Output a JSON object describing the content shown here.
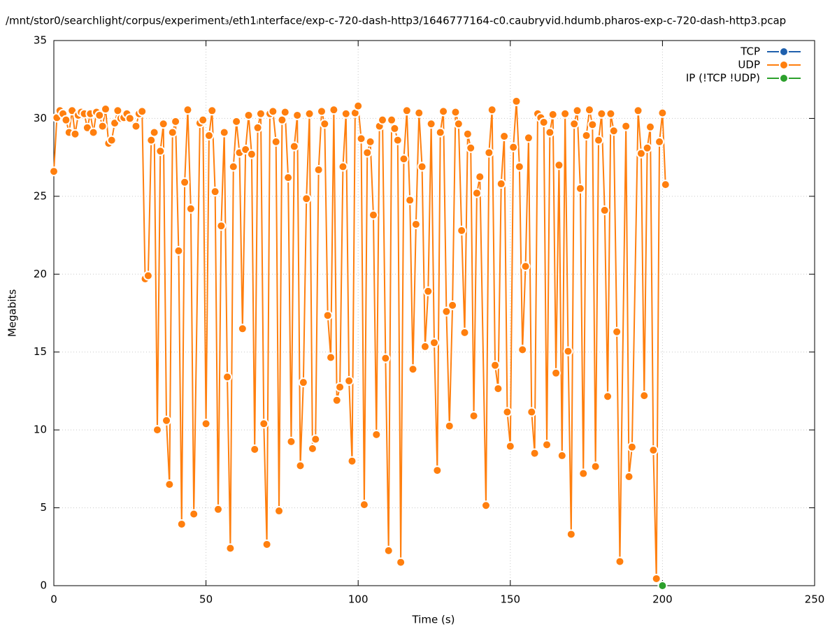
{
  "chart_data": {
    "type": "line",
    "title": "/mnt/stor0/searchlight/corpus/experiment₃/eth1ᵢnterface/exp-c-720-dash-http3/1646777164-c0.caubryvid.hdumb.pharos-exp-c-720-dash-http3.pcap",
    "x_label": "Time (s)",
    "y_label": "Megabits",
    "xlim": [
      0,
      250
    ],
    "xticks": [
      0,
      50,
      100,
      150,
      200,
      250
    ],
    "ylim": [
      0,
      35
    ],
    "yticks": [
      0,
      5,
      10,
      15,
      20,
      25,
      30,
      35
    ],
    "grid": true,
    "legend": "top-right",
    "series": [
      {
        "name": "TCP",
        "color": "#1f60ad",
        "x": [],
        "values": []
      },
      {
        "name": "UDP",
        "color": "#ff7f0e",
        "x": [
          0,
          1,
          2,
          3,
          4,
          5,
          6,
          7,
          8,
          9,
          10,
          11,
          12,
          13,
          14,
          15,
          16,
          17,
          18,
          19,
          20,
          21,
          22,
          23,
          24,
          25,
          27,
          28,
          29,
          30,
          31,
          32,
          33,
          34,
          35,
          36,
          37,
          38,
          39,
          40,
          41,
          42,
          43,
          44,
          45,
          46,
          48,
          49,
          50,
          51,
          52,
          53,
          54,
          55,
          56,
          57,
          58,
          59,
          60,
          61,
          62,
          63,
          64,
          65,
          66,
          67,
          68,
          69,
          70,
          71,
          72,
          73,
          74,
          75,
          76,
          77,
          78,
          79,
          80,
          81,
          82,
          83,
          84,
          85,
          86,
          87,
          88,
          89,
          90,
          91,
          92,
          93,
          94,
          95,
          96,
          97,
          98,
          99,
          100,
          101,
          102,
          103,
          104,
          105,
          106,
          107,
          108,
          109,
          110,
          111,
          112,
          113,
          114,
          115,
          116,
          117,
          118,
          119,
          120,
          121,
          122,
          123,
          124,
          125,
          126,
          127,
          128,
          129,
          130,
          131,
          132,
          133,
          134,
          135,
          136,
          137,
          138,
          139,
          140,
          142,
          143,
          144,
          145,
          146,
          147,
          148,
          149,
          150,
          151,
          152,
          153,
          154,
          155,
          156,
          157,
          158,
          159,
          160,
          161,
          162,
          163,
          164,
          165,
          166,
          167,
          168,
          169,
          170,
          171,
          172,
          173,
          174,
          175,
          176,
          177,
          178,
          179,
          180,
          181,
          182,
          183,
          184,
          185,
          186,
          188,
          189,
          190,
          192,
          193,
          194,
          195,
          196,
          197,
          198,
          199,
          200,
          201
        ],
        "values": [
          26.6,
          30.05,
          30.5,
          30.3,
          29.9,
          29.1,
          30.5,
          29.0,
          30.2,
          30.4,
          30.3,
          29.4,
          30.3,
          29.1,
          30.4,
          30.2,
          29.5,
          30.6,
          28.4,
          28.6,
          29.7,
          30.5,
          30.0,
          30.05,
          30.3,
          30.0,
          29.5,
          30.3,
          30.45,
          19.7,
          19.9,
          28.6,
          29.1,
          10.0,
          27.9,
          29.65,
          10.6,
          6.5,
          29.1,
          29.8,
          21.5,
          3.95,
          25.9,
          30.55,
          24.2,
          4.6,
          29.7,
          29.9,
          10.4,
          28.9,
          30.5,
          25.3,
          4.9,
          23.1,
          29.1,
          13.4,
          2.4,
          26.9,
          29.8,
          27.8,
          16.5,
          28.0,
          30.2,
          27.7,
          8.75,
          29.4,
          30.3,
          10.4,
          2.65,
          30.3,
          30.45,
          28.5,
          4.8,
          29.9,
          30.4,
          26.2,
          9.25,
          28.2,
          30.2,
          7.7,
          13.05,
          24.85,
          30.3,
          8.8,
          9.4,
          26.7,
          30.45,
          29.65,
          17.35,
          14.65,
          30.55,
          11.9,
          12.75,
          26.9,
          30.3,
          13.15,
          8.0,
          30.35,
          30.8,
          28.7,
          5.2,
          27.8,
          28.5,
          23.8,
          9.7,
          29.5,
          29.9,
          14.6,
          2.25,
          29.9,
          29.35,
          28.6,
          1.5,
          27.4,
          30.5,
          24.75,
          13.9,
          23.2,
          30.35,
          26.9,
          15.35,
          18.9,
          29.65,
          15.6,
          7.4,
          29.1,
          30.45,
          17.6,
          10.25,
          18.0,
          30.4,
          29.65,
          22.8,
          16.25,
          29.0,
          28.1,
          10.9,
          25.2,
          26.25,
          5.15,
          27.8,
          30.55,
          14.15,
          12.65,
          25.8,
          28.85,
          11.15,
          8.95,
          28.15,
          31.1,
          26.9,
          15.15,
          20.5,
          28.75,
          11.15,
          8.5,
          30.3,
          30.05,
          29.75,
          9.05,
          29.1,
          30.25,
          13.65,
          27.0,
          8.35,
          30.3,
          15.05,
          3.3,
          29.65,
          30.5,
          25.5,
          7.2,
          28.9,
          30.55,
          29.6,
          7.65,
          28.6,
          30.3,
          24.1,
          12.15,
          30.3,
          29.2,
          16.3,
          1.55,
          29.5,
          7.0,
          8.9,
          30.5,
          27.75,
          12.2,
          28.1,
          29.45,
          8.7,
          0.45,
          28.5,
          30.35,
          25.75
        ]
      },
      {
        "name": "IP (!TCP  !UDP)",
        "color": "#2ca02c",
        "x": [
          200
        ],
        "values": [
          0
        ]
      }
    ]
  }
}
